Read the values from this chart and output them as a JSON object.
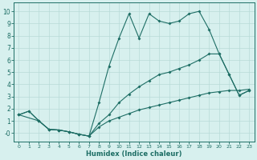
{
  "xlabel": "Humidex (Indice chaleur)",
  "bg_color": "#d7f0ee",
  "grid_color": "#b8dbd8",
  "line_color": "#1e6e65",
  "xlim": [
    -0.5,
    23.5
  ],
  "ylim": [
    -0.7,
    10.7
  ],
  "xticks": [
    0,
    1,
    2,
    3,
    4,
    5,
    6,
    7,
    8,
    9,
    10,
    11,
    12,
    13,
    14,
    15,
    16,
    17,
    18,
    19,
    20,
    21,
    22,
    23
  ],
  "yticks": [
    0,
    1,
    2,
    3,
    4,
    5,
    6,
    7,
    8,
    9,
    10
  ],
  "ytick_labels": [
    "-0",
    "1",
    "2",
    "3",
    "4",
    "5",
    "6",
    "7",
    "8",
    "9",
    "10"
  ],
  "line1_x": [
    0,
    1,
    2,
    3,
    4,
    5,
    6,
    7,
    8,
    9,
    10,
    11,
    12,
    13,
    14,
    15,
    16,
    17,
    18,
    19,
    20,
    21,
    22,
    23
  ],
  "line1_y": [
    1.5,
    1.8,
    1.0,
    0.3,
    0.25,
    0.1,
    -0.1,
    -0.25,
    2.5,
    5.5,
    7.8,
    9.8,
    7.8,
    9.8,
    9.2,
    9.0,
    9.2,
    9.8,
    10.0,
    8.5,
    6.5,
    4.8,
    3.1,
    3.5
  ],
  "line2_x": [
    0,
    2,
    3,
    4,
    5,
    6,
    7,
    8,
    9,
    10,
    11,
    12,
    13,
    14,
    15,
    16,
    17,
    18,
    19,
    20,
    21,
    22,
    23
  ],
  "line2_y": [
    1.5,
    1.0,
    0.3,
    0.25,
    0.1,
    -0.1,
    -0.25,
    0.8,
    1.5,
    2.5,
    3.2,
    3.8,
    4.3,
    4.8,
    5.0,
    5.3,
    5.6,
    6.0,
    6.5,
    6.5,
    4.8,
    3.1,
    3.5
  ],
  "line3_x": [
    0,
    1,
    2,
    3,
    4,
    5,
    6,
    7,
    8,
    9,
    10,
    11,
    12,
    13,
    14,
    15,
    16,
    17,
    18,
    19,
    20,
    21,
    22,
    23
  ],
  "line3_y": [
    1.5,
    1.8,
    1.0,
    0.3,
    0.25,
    0.1,
    -0.1,
    -0.25,
    0.5,
    1.0,
    1.3,
    1.6,
    1.9,
    2.1,
    2.3,
    2.5,
    2.7,
    2.9,
    3.1,
    3.3,
    3.4,
    3.5,
    3.5,
    3.6
  ]
}
